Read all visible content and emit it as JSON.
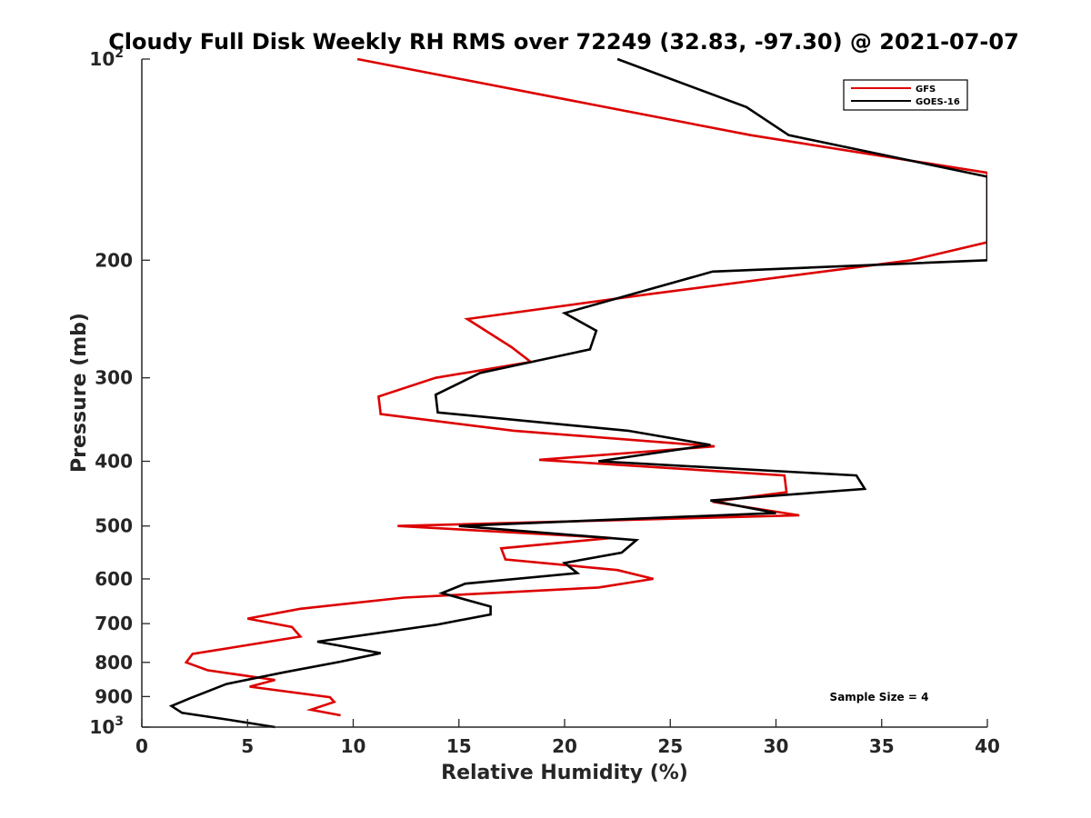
{
  "chart_data": {
    "type": "line",
    "title": "Cloudy Full Disk Weekly RH RMS over 72249 (32.83, -97.30) @ 2021-07-07",
    "xlabel": "Relative Humidity (%)",
    "ylabel": "Pressure (mb)",
    "xlim": [
      0,
      40
    ],
    "ylim": [
      100,
      1000
    ],
    "y_scale": "log",
    "y_reversed": true,
    "grid": false,
    "legend_position": "top-right",
    "x_ticks": [
      0,
      5,
      10,
      15,
      20,
      25,
      30,
      35,
      40
    ],
    "x_tick_labels": [
      "0",
      "5",
      "10",
      "15",
      "20",
      "25",
      "30",
      "35",
      "40"
    ],
    "y_ticks": [
      100,
      200,
      300,
      400,
      500,
      600,
      700,
      800,
      900,
      1000
    ],
    "y_tick_labels": [
      {
        "base": "10",
        "exp": "2"
      },
      {
        "base": "200",
        "exp": ""
      },
      {
        "base": "300",
        "exp": ""
      },
      {
        "base": "400",
        "exp": ""
      },
      {
        "base": "500",
        "exp": ""
      },
      {
        "base": "600",
        "exp": ""
      },
      {
        "base": "700",
        "exp": ""
      },
      {
        "base": "800",
        "exp": ""
      },
      {
        "base": "900",
        "exp": ""
      },
      {
        "base": "10",
        "exp": "3"
      }
    ],
    "annotation": "Sample Size = 4",
    "series": [
      {
        "name": "GFS",
        "color": "#dd0000",
        "points": [
          [
            10.2,
            100
          ],
          [
            28.8,
            130
          ],
          [
            40.0,
            148
          ],
          [
            40.0,
            188
          ],
          [
            36.4,
            200
          ],
          [
            23.9,
            225
          ],
          [
            15.4,
            245
          ],
          [
            17.5,
            270
          ],
          [
            18.4,
            284
          ],
          [
            13.9,
            300
          ],
          [
            11.2,
            320
          ],
          [
            11.3,
            340
          ],
          [
            17.6,
            360
          ],
          [
            27.1,
            380
          ],
          [
            18.8,
            398
          ],
          [
            30.4,
            420
          ],
          [
            30.5,
            445
          ],
          [
            27.0,
            460
          ],
          [
            31.1,
            482
          ],
          [
            12.1,
            500
          ],
          [
            22.2,
            521
          ],
          [
            17.0,
            540
          ],
          [
            17.2,
            561
          ],
          [
            22.5,
            582
          ],
          [
            24.2,
            600
          ],
          [
            21.6,
            618
          ],
          [
            12.4,
            640
          ],
          [
            7.5,
            665
          ],
          [
            5.0,
            688
          ],
          [
            7.1,
            708
          ],
          [
            7.5,
            732
          ],
          [
            2.4,
            777
          ],
          [
            2.1,
            800
          ],
          [
            3.1,
            822
          ],
          [
            6.3,
            850
          ],
          [
            5.1,
            870
          ],
          [
            8.9,
            902
          ],
          [
            9.1,
            917
          ],
          [
            8.0,
            942
          ],
          [
            9.4,
            960
          ]
        ]
      },
      {
        "name": "GOES-16",
        "color": "#000000",
        "points": [
          [
            22.5,
            100
          ],
          [
            28.6,
            118
          ],
          [
            30.6,
            130
          ],
          [
            40.0,
            150
          ],
          [
            40.0,
            200
          ],
          [
            27.0,
            208
          ],
          [
            20.0,
            240
          ],
          [
            21.5,
            255
          ],
          [
            21.2,
            272
          ],
          [
            16.0,
            295
          ],
          [
            13.9,
            318
          ],
          [
            14.0,
            338
          ],
          [
            23.0,
            360
          ],
          [
            26.9,
            378
          ],
          [
            21.6,
            400
          ],
          [
            33.8,
            420
          ],
          [
            34.2,
            440
          ],
          [
            26.9,
            458
          ],
          [
            30.0,
            478
          ],
          [
            15.0,
            500
          ],
          [
            23.4,
            525
          ],
          [
            22.7,
            548
          ],
          [
            20.0,
            568
          ],
          [
            20.6,
            588
          ],
          [
            15.3,
            610
          ],
          [
            14.2,
            630
          ],
          [
            16.5,
            660
          ],
          [
            16.5,
            678
          ],
          [
            14.0,
            702
          ],
          [
            8.3,
            745
          ],
          [
            11.3,
            775
          ],
          [
            9.4,
            798
          ],
          [
            6.7,
            828
          ],
          [
            4.0,
            862
          ],
          [
            2.3,
            905
          ],
          [
            1.4,
            930
          ],
          [
            1.9,
            952
          ],
          [
            4.1,
            975
          ],
          [
            6.3,
            1000
          ]
        ]
      }
    ]
  }
}
